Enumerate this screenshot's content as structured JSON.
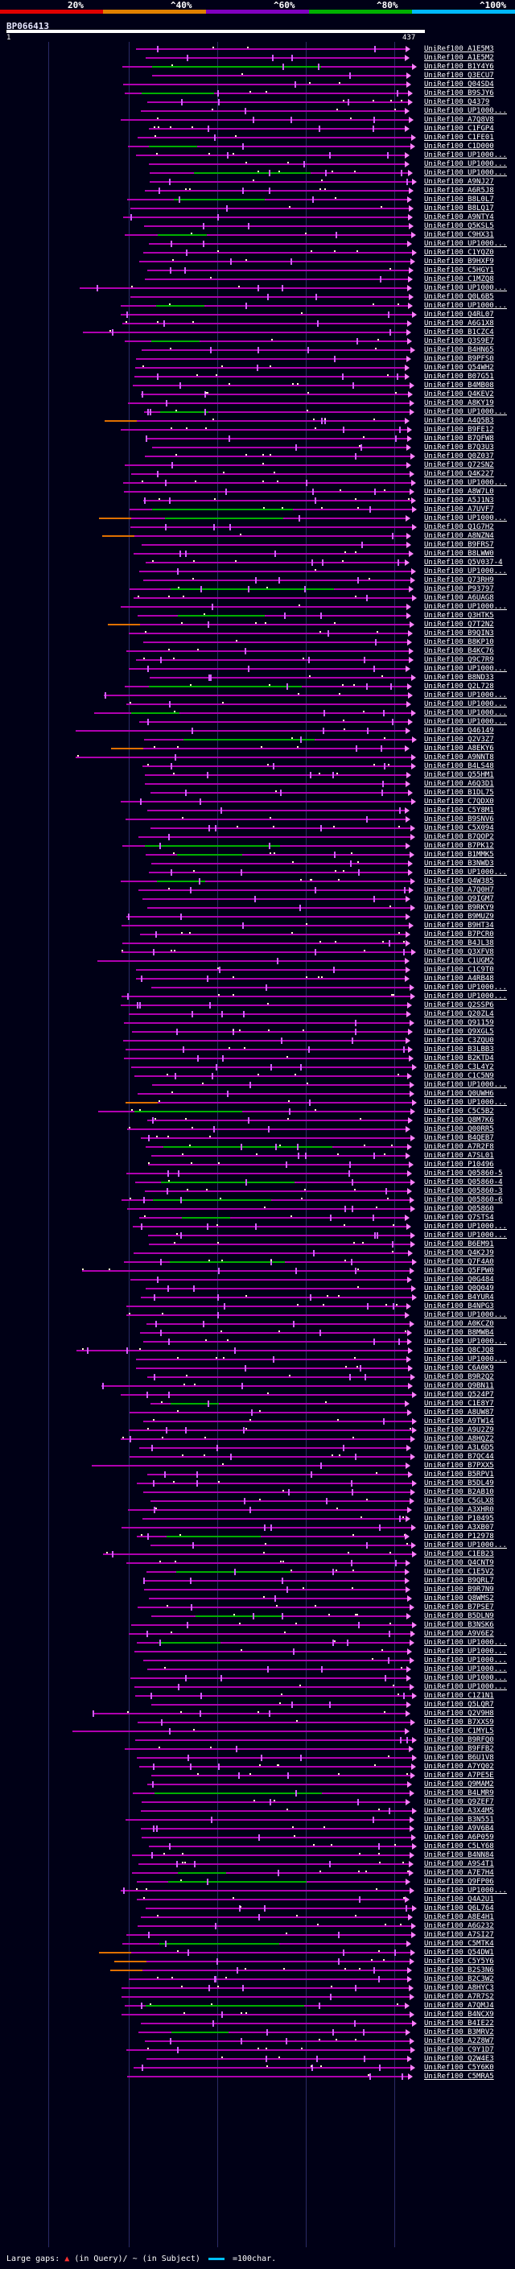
{
  "colors": {
    "background": "#000016",
    "scale": [
      "#e00000",
      "#e08000",
      "#8000c0",
      "#00b000",
      "#00b8ff"
    ],
    "hit_default": "#b000b0",
    "hit_green": "#00b000",
    "hit_orange": "#e07000",
    "arrow": "#ff80ff"
  },
  "scale_labels": [
    "20%",
    "^40%",
    "^60%",
    "^80%",
    "^100%"
  ],
  "query": {
    "id": "BP066413",
    "start": "1",
    "end": "437"
  },
  "legend": {
    "prefix": "Large gaps:",
    "marker": "▲",
    "query_text": "(in Query)/",
    "subject_sep": "~",
    "subject_text": "(in Subject)",
    "scale_text": "=100char."
  },
  "rows": [
    "UniRef100_A1E5M3",
    "UniRef100_A1E5M2",
    "UniRef100_B1Y4Y6",
    "UniRef100_Q3ECU7",
    "UniRef100_Q04SD4",
    "UniRef100_B9SJY6",
    "UniRef100_Q4379",
    "UniRef100_UP1000...",
    "UniRef100_A7Q8V8",
    "UniRef100_C1FGP4",
    "UniRef100_C1FE01",
    "UniRef100_C1D000",
    "UniRef100_UP1000...",
    "UniRef100_UP1000...",
    "UniRef100_UP1000...",
    "UniRef100_A9NJ27",
    "UniRef100_A6R5J8",
    "UniRef100_B8L0L7",
    "UniRef100_B8LQ17",
    "UniRef100_A9NTY4",
    "UniRef100_Q5KSL5",
    "UniRef100_C9HX31",
    "UniRef100_UP1000...",
    "UniRef100_C1YQZ0",
    "UniRef100_B9HXF9",
    "UniRef100_C5HGY1",
    "UniRef100_C1MZQ8",
    "UniRef100_UP1000...",
    "UniRef100_Q0L6B5",
    "UniRef100_UP1000...",
    "UniRef100_Q4RL07",
    "UniRef100_A6G1X8",
    "UniRef100_B1CZC4",
    "UniRef100_Q3S9E7",
    "UniRef100_B4HN65",
    "UniRef100_B9PFS0",
    "UniRef100_Q54WH2",
    "UniRef100_B07G51",
    "UniRef100_B4MB08",
    "UniRef100_Q4KEV2",
    "UniRef100_A8KY19",
    "UniRef100_UP1000...",
    "UniRef100_A4Q5B3",
    "UniRef100_B9FE12",
    "UniRef100_B7QFW8",
    "UniRef100_B7Q3U3",
    "UniRef100_Q0Z037",
    "UniRef100_Q72SN2",
    "UniRef100_Q4K227",
    "UniRef100_UP1000...",
    "UniRef100_A8W7L0",
    "UniRef100_A5J1N3",
    "UniRef100_A7UVF7",
    "UniRef100_UP1000...",
    "UniRef100_Q1G7H2",
    "UniRef100_A8NZN4",
    "UniRef100_B9FRS7",
    "UniRef100_B8LWW0",
    "UniRef100_Q5V037-4",
    "UniRef100_UP1000...",
    "UniRef100_Q73RH9",
    "UniRef100_P93797",
    "UniRef100_A6UAG8",
    "UniRef100_UP1000...",
    "UniRef100_Q3HTK5",
    "UniRef100_Q7T2N2",
    "UniRef100_B9QIN3",
    "UniRef100_B8KP10",
    "UniRef100_B4KC76",
    "UniRef100_Q9C7R9",
    "UniRef100_UP1000...",
    "UniRef100_B8ND33",
    "UniRef100_Q2L728",
    "UniRef100_UP1000...",
    "UniRef100_UP1000...",
    "UniRef100_UP1000...",
    "UniRef100_UP1000...",
    "UniRef100_Q46149",
    "UniRef100_Q2V3Z7",
    "UniRef100_A8EKY6",
    "UniRef100_A9NNT8",
    "UniRef100_B4LS48",
    "UniRef100_Q55HM1",
    "UniRef100_A6Q3D1",
    "UniRef100_B1DL75",
    "UniRef100_C7QDX0",
    "UniRef100_C5Y8M1",
    "UniRef100_B9SNV6",
    "UniRef100_C5X094",
    "UniRef100_B7QOP2",
    "UniRef100_B7PK12",
    "UniRef100_B1MMK5",
    "UniRef100_B3NWD3",
    "UniRef100_UP1000...",
    "UniRef100_Q4W385",
    "UniRef100_A7Q0H7",
    "UniRef100_Q9IGM7",
    "UniRef100_B9RKY9",
    "UniRef100_B9MUZ9",
    "UniRef100_B9HT34",
    "UniRef100_B7PCR0",
    "UniRef100_B4JL38",
    "UniRef100_Q3XFV8",
    "UniRef100_C1UGM2",
    "UniRef100_C1C9T0",
    "UniRef100_A4RB48",
    "UniRef100_UP1000...",
    "UniRef100_UP1000...",
    "UniRef100_Q2SSP6",
    "UniRef100_Q20ZL4",
    "UniRef100_Q91159",
    "UniRef100_Q9XGL5",
    "UniRef100_C3ZQU0",
    "UniRef100_B3LBB3",
    "UniRef100_B2KTD4",
    "UniRef100_C3L4Y2",
    "UniRef100_C1C5N9",
    "UniRef100_UP1000...",
    "UniRef100_Q0UWH6",
    "UniRef100_UP1000...",
    "UniRef100_C5C5B2",
    "UniRef100_Q8M7K6",
    "UniRef100_Q00RR5",
    "UniRef100_B4QEB7",
    "UniRef100_A7R2F8",
    "UniRef100_A7SL01",
    "UniRef100_P10496",
    "UniRef100_Q05860-5",
    "UniRef100_Q05860-4",
    "UniRef100_Q05860-3",
    "UniRef100_Q05860-6",
    "UniRef100_Q05860",
    "UniRef100_Q7STS4",
    "UniRef100_UP1000...",
    "UniRef100_UP1000...",
    "UniRef100_B6EM91",
    "UniRef100_Q4K2J9",
    "UniRef100_Q7F4A0",
    "UniRef100_Q5FPW0",
    "UniRef100_Q0G484",
    "UniRef100_Q0Q049",
    "UniRef100_B4YUR4",
    "UniRef100_B4NPG3",
    "UniRef100_UP1000...",
    "UniRef100_A0KCZ0",
    "UniRef100_B8MWB4",
    "UniRef100_UP1000...",
    "UniRef100_Q8CJQ8",
    "UniRef100_UP1000...",
    "UniRef100_C6A0K9",
    "UniRef100_B9R2Q2",
    "UniRef100_Q9BN11",
    "UniRef100_Q524P7",
    "UniRef100_C1E8Y7",
    "UniRef100_A8UW87",
    "UniRef100_A9TW14",
    "UniRef100_A9U2Z9",
    "UniRef100_A8HQZ2",
    "UniRef100_A3L6D5",
    "UniRef100_B7QC44",
    "UniRef100_B7PXX5",
    "UniRef100_B5RPV1",
    "UniRef100_B5DL49",
    "UniRef100_B2AB10",
    "UniRef100_C5GLX8",
    "UniRef100_A3XHR0",
    "UniRef100_P10495",
    "UniRef100_A3XB07",
    "UniRef100_P12978",
    "UniRef100_UP1000...",
    "UniRef100_C1EB23",
    "UniRef100_Q4CNT9",
    "UniRef100_C1E5V2",
    "UniRef100_B9QRL7",
    "UniRef100_B9R7N9",
    "UniRef100_Q8WMS2",
    "UniRef100_B7PSE7",
    "UniRef100_B5DLN9",
    "UniRef100_B3NSK6",
    "UniRef100_A9V6E2",
    "UniRef100_UP1000...",
    "UniRef100_UP1000...",
    "UniRef100_UP1000...",
    "UniRef100_UP1000...",
    "UniRef100_UP1000...",
    "UniRef100_UP1000...",
    "UniRef100_C1Z1N1",
    "UniRef100_Q5LQR7",
    "UniRef100_Q2V9H8",
    "UniRef100_B7XXS9",
    "UniRef100_C1MYL5",
    "UniRef100_B9RFQ0",
    "UniRef100_B9FFB2",
    "UniRef100_B6U1V8",
    "UniRef100_A7YQ02",
    "UniRef100_A7PE5E",
    "UniRef100_Q9MAM2",
    "UniRef100_B4LMR9",
    "UniRef100_Q9ZEF7",
    "UniRef100_A3X4M5",
    "UniRef100_B3N551",
    "UniRef100_A9V6B4",
    "UniRef100_A6P059",
    "UniRef100_C5LY68",
    "UniRef100_B4NN84",
    "UniRef100_A9S4T1",
    "UniRef100_A7E7H4",
    "UniRef100_Q9FP06",
    "UniRef100_UP1000...",
    "UniRef100_Q4A2U1",
    "UniRef100_Q6L764",
    "UniRef100_A8E4H1",
    "UniRef100_A6G232",
    "UniRef100_A7SI27",
    "UniRef100_C5MTK4",
    "UniRef100_Q54DW1",
    "UniRef100_C5Y5Y6",
    "UniRef100_B2S3N6",
    "UniRef100_B2C3W2",
    "UniRef100_A8HYC3",
    "UniRef100_A7R7S2",
    "UniRef100_A7QMJ4",
    "UniRef100_B4NCX9",
    "UniRef100_B4IE22",
    "UniRef100_B3MRV2",
    "UniRef100_A2Z8W7",
    "UniRef100_C9Y1D7",
    "UniRef100_Q2W4E3",
    "UniRef100_C5Y6K0",
    "UniRef100_C5MRA5"
  ]
}
